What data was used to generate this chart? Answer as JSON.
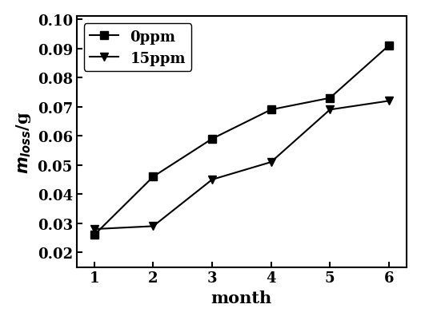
{
  "x": [
    1,
    2,
    3,
    4,
    5,
    6
  ],
  "y_0ppm": [
    0.026,
    0.046,
    0.059,
    0.069,
    0.073,
    0.091
  ],
  "y_15ppm": [
    0.028,
    0.029,
    0.045,
    0.051,
    0.069,
    0.072
  ],
  "label_0ppm": "0ppm",
  "label_15ppm": "15ppm",
  "xlabel": "month",
  "ylabel": "$m_{loss}$/g",
  "xlim": [
    0.7,
    6.3
  ],
  "ylim": [
    0.015,
    0.101
  ],
  "yticks": [
    0.02,
    0.03,
    0.04,
    0.05,
    0.06,
    0.07,
    0.08,
    0.09,
    0.1
  ],
  "xticks": [
    1,
    2,
    3,
    4,
    5,
    6
  ],
  "line_color": "#000000",
  "marker_square": "s",
  "marker_triangle": "v",
  "marker_size": 7,
  "linewidth": 1.5,
  "legend_loc": "upper left",
  "font_size_ticks": 13,
  "font_size_label": 15,
  "font_size_legend": 13
}
